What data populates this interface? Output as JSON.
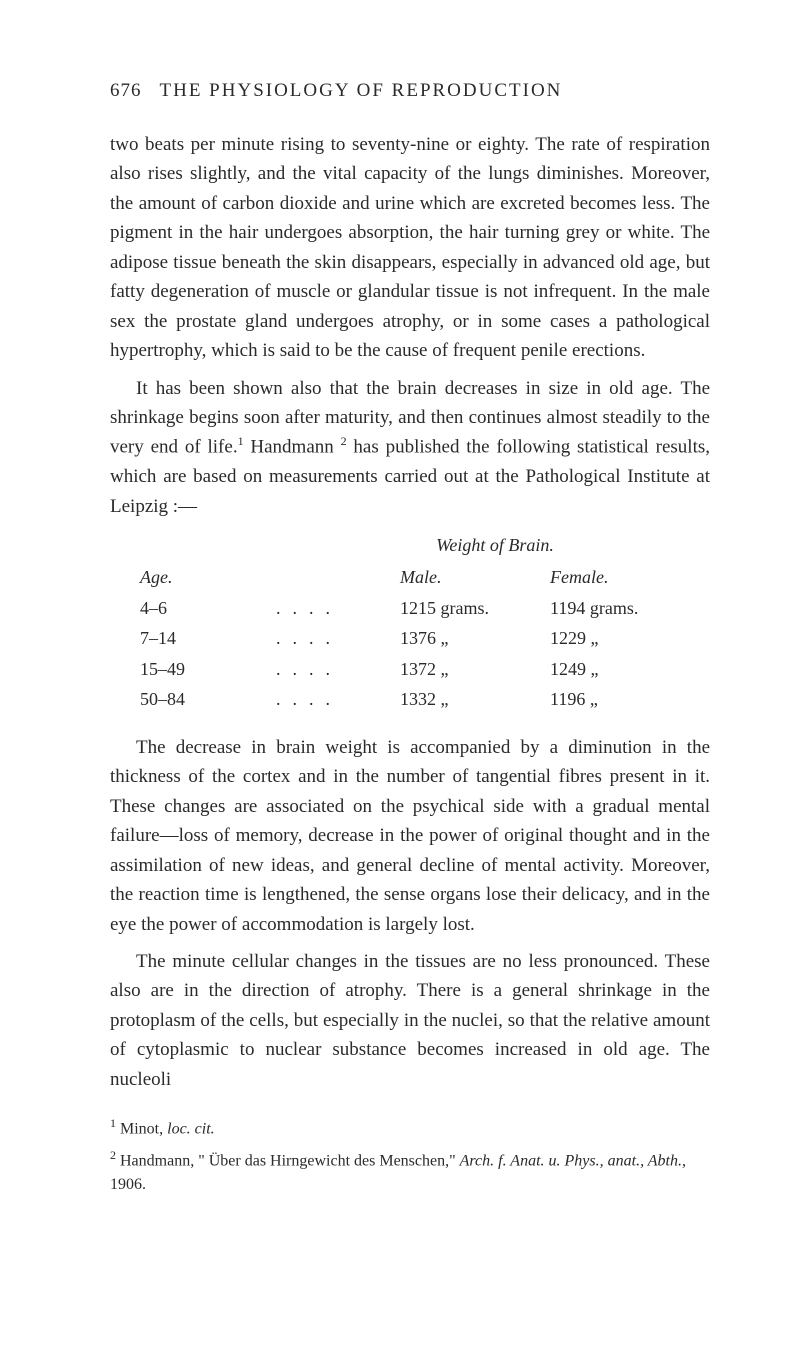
{
  "header": {
    "page_number": "676",
    "title": "THE PHYSIOLOGY OF REPRODUCTION"
  },
  "paragraphs": {
    "p1": "two beats per minute rising to seventy-nine or eighty. The rate of respiration also rises slightly, and the vital capacity of the lungs diminishes. Moreover, the amount of carbon dioxide and urine which are excreted becomes less. The pigment in the hair undergoes absorption, the hair turning grey or white. The adipose tissue beneath the skin disappears, especially in ad­vanced old age, but fatty degeneration of muscle or glandular tissue is not infrequent. In the male sex the prostate gland undergoes atrophy, or in some cases a pathological hypertrophy, which is said to be the cause of frequent penile erections.",
    "p2_a": "It has been shown also that the brain decreases in size in old age. The shrinkage begins soon after maturity, and then continues almost steadily to the very end of life.",
    "p2_b": " Handmann ",
    "p2_c": " has published the following statistical results, which are based on measurements carried out at the Pathological Institute at Leipzig :—",
    "p3": "The decrease in brain weight is accompanied by a diminution in the thickness of the cortex and in the number of tangential fibres present in it. These changes are associated on the psychical side with a gradual mental failure—loss of memory, decrease in the power of original thought and in the assimilation of new ideas, and general decline of mental activity. Moreover, the reaction time is lengthened, the sense organs lose their delicacy, and in the eye the power of accommodation is largely lost.",
    "p4": "The minute cellular changes in the tissues are no less pro­nounced. These also are in the direction of atrophy. There is a general shrinkage in the protoplasm of the cells, but especially in the nuclei, so that the relative amount of cytoplasmic to nuclear substance becomes increased in old age. The nucleoli"
  },
  "table": {
    "caption": "Weight of Brain.",
    "header": {
      "age": "Age.",
      "male": "Male.",
      "female": "Female."
    },
    "rows": [
      {
        "age": "4–6",
        "male": "1215 grams.",
        "female": "1194 grams."
      },
      {
        "age": "7–14",
        "male": "1376    „",
        "female": "1229    „"
      },
      {
        "age": "15–49",
        "male": "1372    „",
        "female": "1249    „"
      },
      {
        "age": "50–84",
        "male": "1332    „",
        "female": "1196    „"
      }
    ]
  },
  "footnotes": {
    "f1_sup": "1",
    "f1_a": " Minot, ",
    "f1_b": "loc. cit.",
    "f2_sup": "2",
    "f2_a": " Handmann, \" Über das Hirngewicht des Menschen,\" ",
    "f2_b": "Arch. f. Anat. u. Phys., anat., Abth.",
    "f2_c": ", 1906."
  },
  "sup": {
    "one": "1",
    "two": "2"
  }
}
